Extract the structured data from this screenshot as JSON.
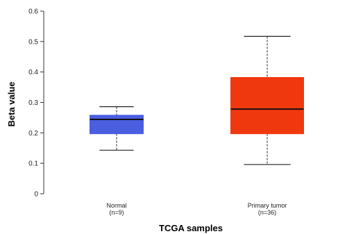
{
  "chart_data": {
    "type": "box",
    "title": "",
    "xlabel": "TCGA samples",
    "ylabel": "Beta value",
    "ylim": [
      0,
      0.6
    ],
    "yticks": [
      "0",
      "0.1",
      "0.2",
      "0.3",
      "0.4",
      "0.5",
      "0.6"
    ],
    "grid": false,
    "categories": [
      {
        "label": "Normal",
        "sublabel": "(n=9)",
        "color": "#4a5ee0",
        "min": 0.143,
        "q1": 0.197,
        "median": 0.244,
        "q3": 0.258,
        "max": 0.286
      },
      {
        "label": "Primary tumor",
        "sublabel": "(n=36)",
        "color": "#f0380e",
        "min": 0.096,
        "q1": 0.197,
        "median": 0.278,
        "q3": 0.382,
        "max": 0.517
      }
    ]
  }
}
